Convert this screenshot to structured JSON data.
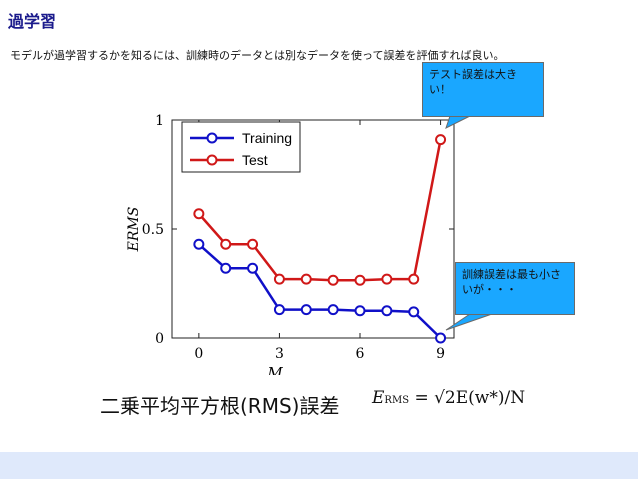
{
  "slide": {
    "title": "過学習",
    "intro": "モデルが過学習するかを知るには、訓練時のデータとは別なデータを使って誤差を評価すれば良い。",
    "caption": "二乗平均平方根(RMS)誤差",
    "formula": {
      "lhs": "E",
      "lhs_sub": "RMS",
      "rhs": "= √2E(w*)/N"
    }
  },
  "callouts": {
    "test": "テスト誤差は大きい！",
    "train": "訓練誤差は最も小さいが・・・"
  },
  "colors": {
    "title": "#1a1a8c",
    "training": "#1010c8",
    "test": "#d01818",
    "callout": "#1aa7ff",
    "band": "#dfe9fb"
  },
  "chart_data": {
    "type": "line",
    "xlabel": "M",
    "ylabel": "ERMS",
    "xlim": [
      -1,
      9.5
    ],
    "ylim": [
      0,
      1
    ],
    "xticks": [
      0,
      3,
      6,
      9
    ],
    "yticks": [
      0,
      0.5,
      1
    ],
    "legend": "top-left",
    "x": [
      0,
      1,
      2,
      3,
      4,
      5,
      6,
      7,
      8,
      9
    ],
    "series": [
      {
        "name": "Training",
        "color": "#1010c8",
        "values": [
          0.43,
          0.32,
          0.32,
          0.13,
          0.13,
          0.13,
          0.125,
          0.125,
          0.12,
          0.0
        ]
      },
      {
        "name": "Test",
        "color": "#d01818",
        "values": [
          0.57,
          0.43,
          0.43,
          0.27,
          0.27,
          0.265,
          0.265,
          0.27,
          0.27,
          0.91
        ]
      }
    ]
  }
}
